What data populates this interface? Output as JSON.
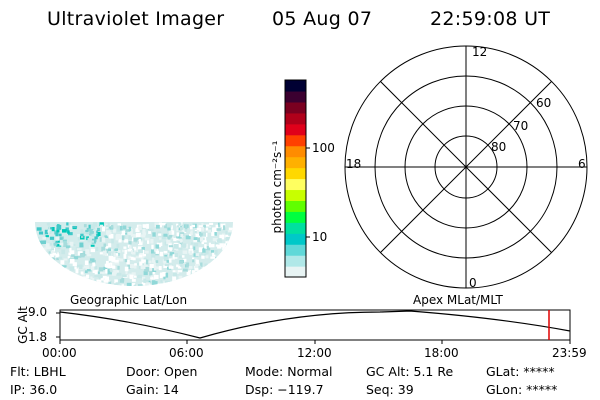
{
  "header": {
    "instrument": "Ultraviolet Imager",
    "date": "05 Aug 07",
    "time": "22:59:08 UT"
  },
  "colorbar": {
    "label": "photon cm⁻²s⁻¹",
    "ticks": [
      "100",
      "10"
    ],
    "colors": [
      "#000033",
      "#3b0030",
      "#7a0020",
      "#b0001a",
      "#e0001a",
      "#ff4000",
      "#ff8c00",
      "#ffb000",
      "#ffd800",
      "#ffff60",
      "#c8ff00",
      "#60ff00",
      "#00ff40",
      "#00e0a0",
      "#00c8c8",
      "#60d8d8",
      "#b0e8e8",
      "#e8f4f4"
    ]
  },
  "polar_plot": {
    "mlt_labels": {
      "top": "12",
      "left": "18",
      "right": "6",
      "bottom": "0"
    },
    "lat_labels": [
      "60",
      "70",
      "80"
    ]
  },
  "map_labels": {
    "left": "Geographic Lat/Lon",
    "right": "Apex MLat/MLT"
  },
  "altitude_plot": {
    "ylabel": "GC Alt",
    "yticks": [
      "9.0",
      "1.8"
    ],
    "xticks": [
      "00:00",
      "06:00",
      "12:00",
      "18:00",
      "23:59"
    ],
    "marker_color": "#e00000"
  },
  "status": {
    "row1": {
      "flt": "Flt: LBHL",
      "door": "Door: Open",
      "mode": "Mode: Normal",
      "gcalt": "GC Alt: 5.1 Re",
      "glat": "GLat: *****"
    },
    "row2": {
      "ip": "IP: 36.0",
      "gain": "Gain: 14",
      "dsp": "Dsp: −119.7",
      "seq": "Seq: 39",
      "glon": "GLon: *****"
    }
  }
}
